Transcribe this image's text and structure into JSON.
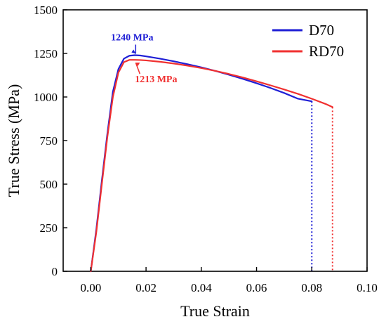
{
  "chart_data": {
    "type": "line",
    "title": "",
    "xlabel": "True Strain",
    "ylabel": "True Stress (MPa)",
    "xlim": [
      -0.01,
      0.1
    ],
    "ylim": [
      0,
      1500
    ],
    "xticks": [
      0.0,
      0.02,
      0.04,
      0.06,
      0.08,
      0.1
    ],
    "xtick_labels": [
      "0.00",
      "0.02",
      "0.04",
      "0.06",
      "0.08",
      "0.10"
    ],
    "yticks": [
      0,
      250,
      500,
      750,
      1000,
      1250,
      1500
    ],
    "ytick_labels": [
      "0",
      "250",
      "500",
      "750",
      "1000",
      "1250",
      "1500"
    ],
    "grid": false,
    "legend": {
      "placement": "top-right",
      "entries": [
        "D70",
        "RD70"
      ]
    },
    "series": [
      {
        "name": "D70",
        "color": "#1f1fd6",
        "x": [
          0.0,
          0.002,
          0.004,
          0.006,
          0.008,
          0.01,
          0.012,
          0.014,
          0.016,
          0.018,
          0.02,
          0.025,
          0.03,
          0.035,
          0.04,
          0.045,
          0.05,
          0.055,
          0.06,
          0.065,
          0.07,
          0.075,
          0.08
        ],
        "y": [
          0,
          240,
          520,
          790,
          1030,
          1160,
          1220,
          1237,
          1240,
          1238,
          1233,
          1220,
          1205,
          1188,
          1170,
          1150,
          1128,
          1104,
          1079,
          1052,
          1023,
          990,
          975
        ],
        "failure_x": 0.08,
        "failure_y": 975
      },
      {
        "name": "RD70",
        "color": "#f03030",
        "x": [
          0.0,
          0.002,
          0.004,
          0.006,
          0.008,
          0.01,
          0.012,
          0.014,
          0.016,
          0.018,
          0.02,
          0.025,
          0.03,
          0.035,
          0.04,
          0.045,
          0.05,
          0.055,
          0.06,
          0.065,
          0.07,
          0.075,
          0.08,
          0.085,
          0.0875
        ],
        "y": [
          0,
          225,
          500,
          770,
          1000,
          1140,
          1200,
          1213,
          1213,
          1212,
          1210,
          1202,
          1192,
          1180,
          1166,
          1150,
          1132,
          1112,
          1090,
          1067,
          1043,
          1018,
          990,
          960,
          942
        ],
        "failure_x": 0.0875,
        "failure_y": 942
      }
    ],
    "annotations": [
      {
        "text": "1240 MPa",
        "color": "#1f1fd6",
        "x": 0.0165,
        "y": 1240
      },
      {
        "text": "1213 MPa",
        "color": "#f03030",
        "x": 0.016,
        "y": 1213
      }
    ]
  }
}
